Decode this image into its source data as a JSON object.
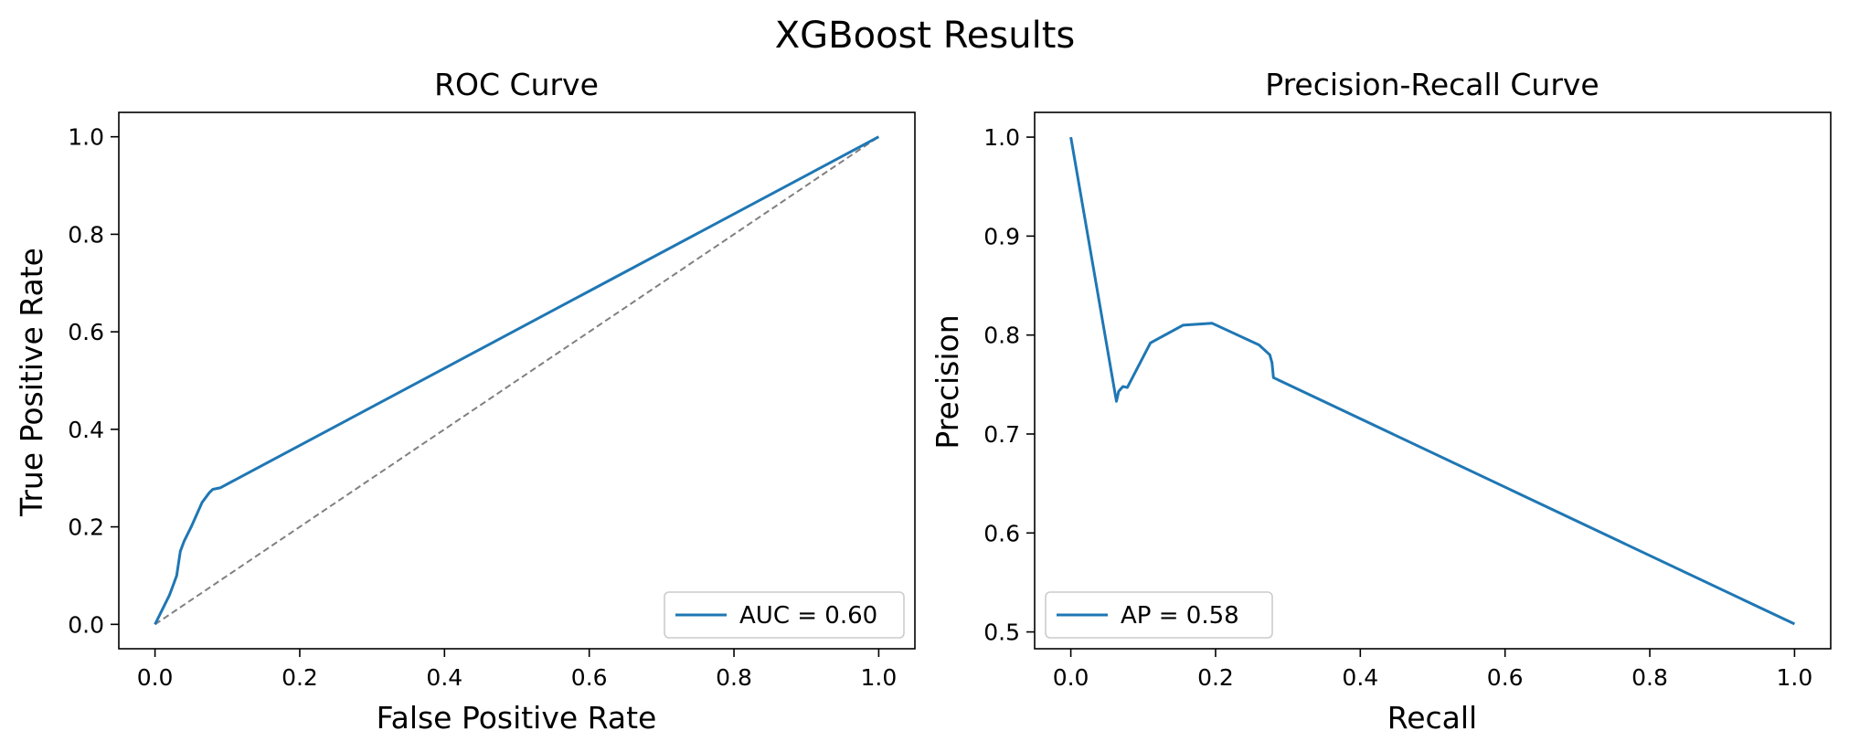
{
  "figure": {
    "title": "XGBoost Results"
  },
  "chart_data": [
    {
      "type": "line",
      "title": "ROC Curve",
      "xlabel": "False Positive Rate",
      "ylabel": "True Positive Rate",
      "xlim": [
        -0.05,
        1.05
      ],
      "ylim": [
        -0.05,
        1.05
      ],
      "xticks": [
        "0.0",
        "0.2",
        "0.4",
        "0.6",
        "0.8",
        "1.0"
      ],
      "yticks": [
        "0.0",
        "0.2",
        "0.4",
        "0.6",
        "0.8",
        "1.0"
      ],
      "grid": false,
      "legend_position": "lower right",
      "series": [
        {
          "name": "AUC = 0.60",
          "color": "#1f77b4",
          "x": [
            0.0,
            0.01,
            0.02,
            0.025,
            0.03,
            0.032,
            0.035,
            0.04,
            0.05,
            0.065,
            0.075,
            0.08,
            0.09,
            1.0
          ],
          "y": [
            0.0,
            0.03,
            0.06,
            0.08,
            0.1,
            0.12,
            0.15,
            0.17,
            0.2,
            0.25,
            0.27,
            0.277,
            0.28,
            1.0
          ]
        }
      ],
      "reference_line": {
        "x": [
          0,
          1
        ],
        "y": [
          0,
          1
        ],
        "color": "#808080",
        "style": "dashed"
      }
    },
    {
      "type": "line",
      "title": "Precision-Recall Curve",
      "xlabel": "Recall",
      "ylabel": "Precision",
      "xlim": [
        -0.05,
        1.05
      ],
      "ylim": [
        0.483,
        1.025
      ],
      "xticks": [
        "0.0",
        "0.2",
        "0.4",
        "0.6",
        "0.8",
        "1.0"
      ],
      "yticks": [
        "0.5",
        "0.6",
        "0.7",
        "0.8",
        "0.9",
        "1.0"
      ],
      "grid": false,
      "legend_position": "lower left",
      "series": [
        {
          "name": "AP = 0.58",
          "color": "#1f77b4",
          "x": [
            0.0,
            0.063,
            0.066,
            0.072,
            0.078,
            0.11,
            0.155,
            0.195,
            0.26,
            0.275,
            0.278,
            0.28,
            1.0
          ],
          "y": [
            1.0,
            0.733,
            0.743,
            0.748,
            0.747,
            0.792,
            0.81,
            0.812,
            0.79,
            0.78,
            0.772,
            0.757,
            0.508
          ]
        }
      ]
    }
  ]
}
